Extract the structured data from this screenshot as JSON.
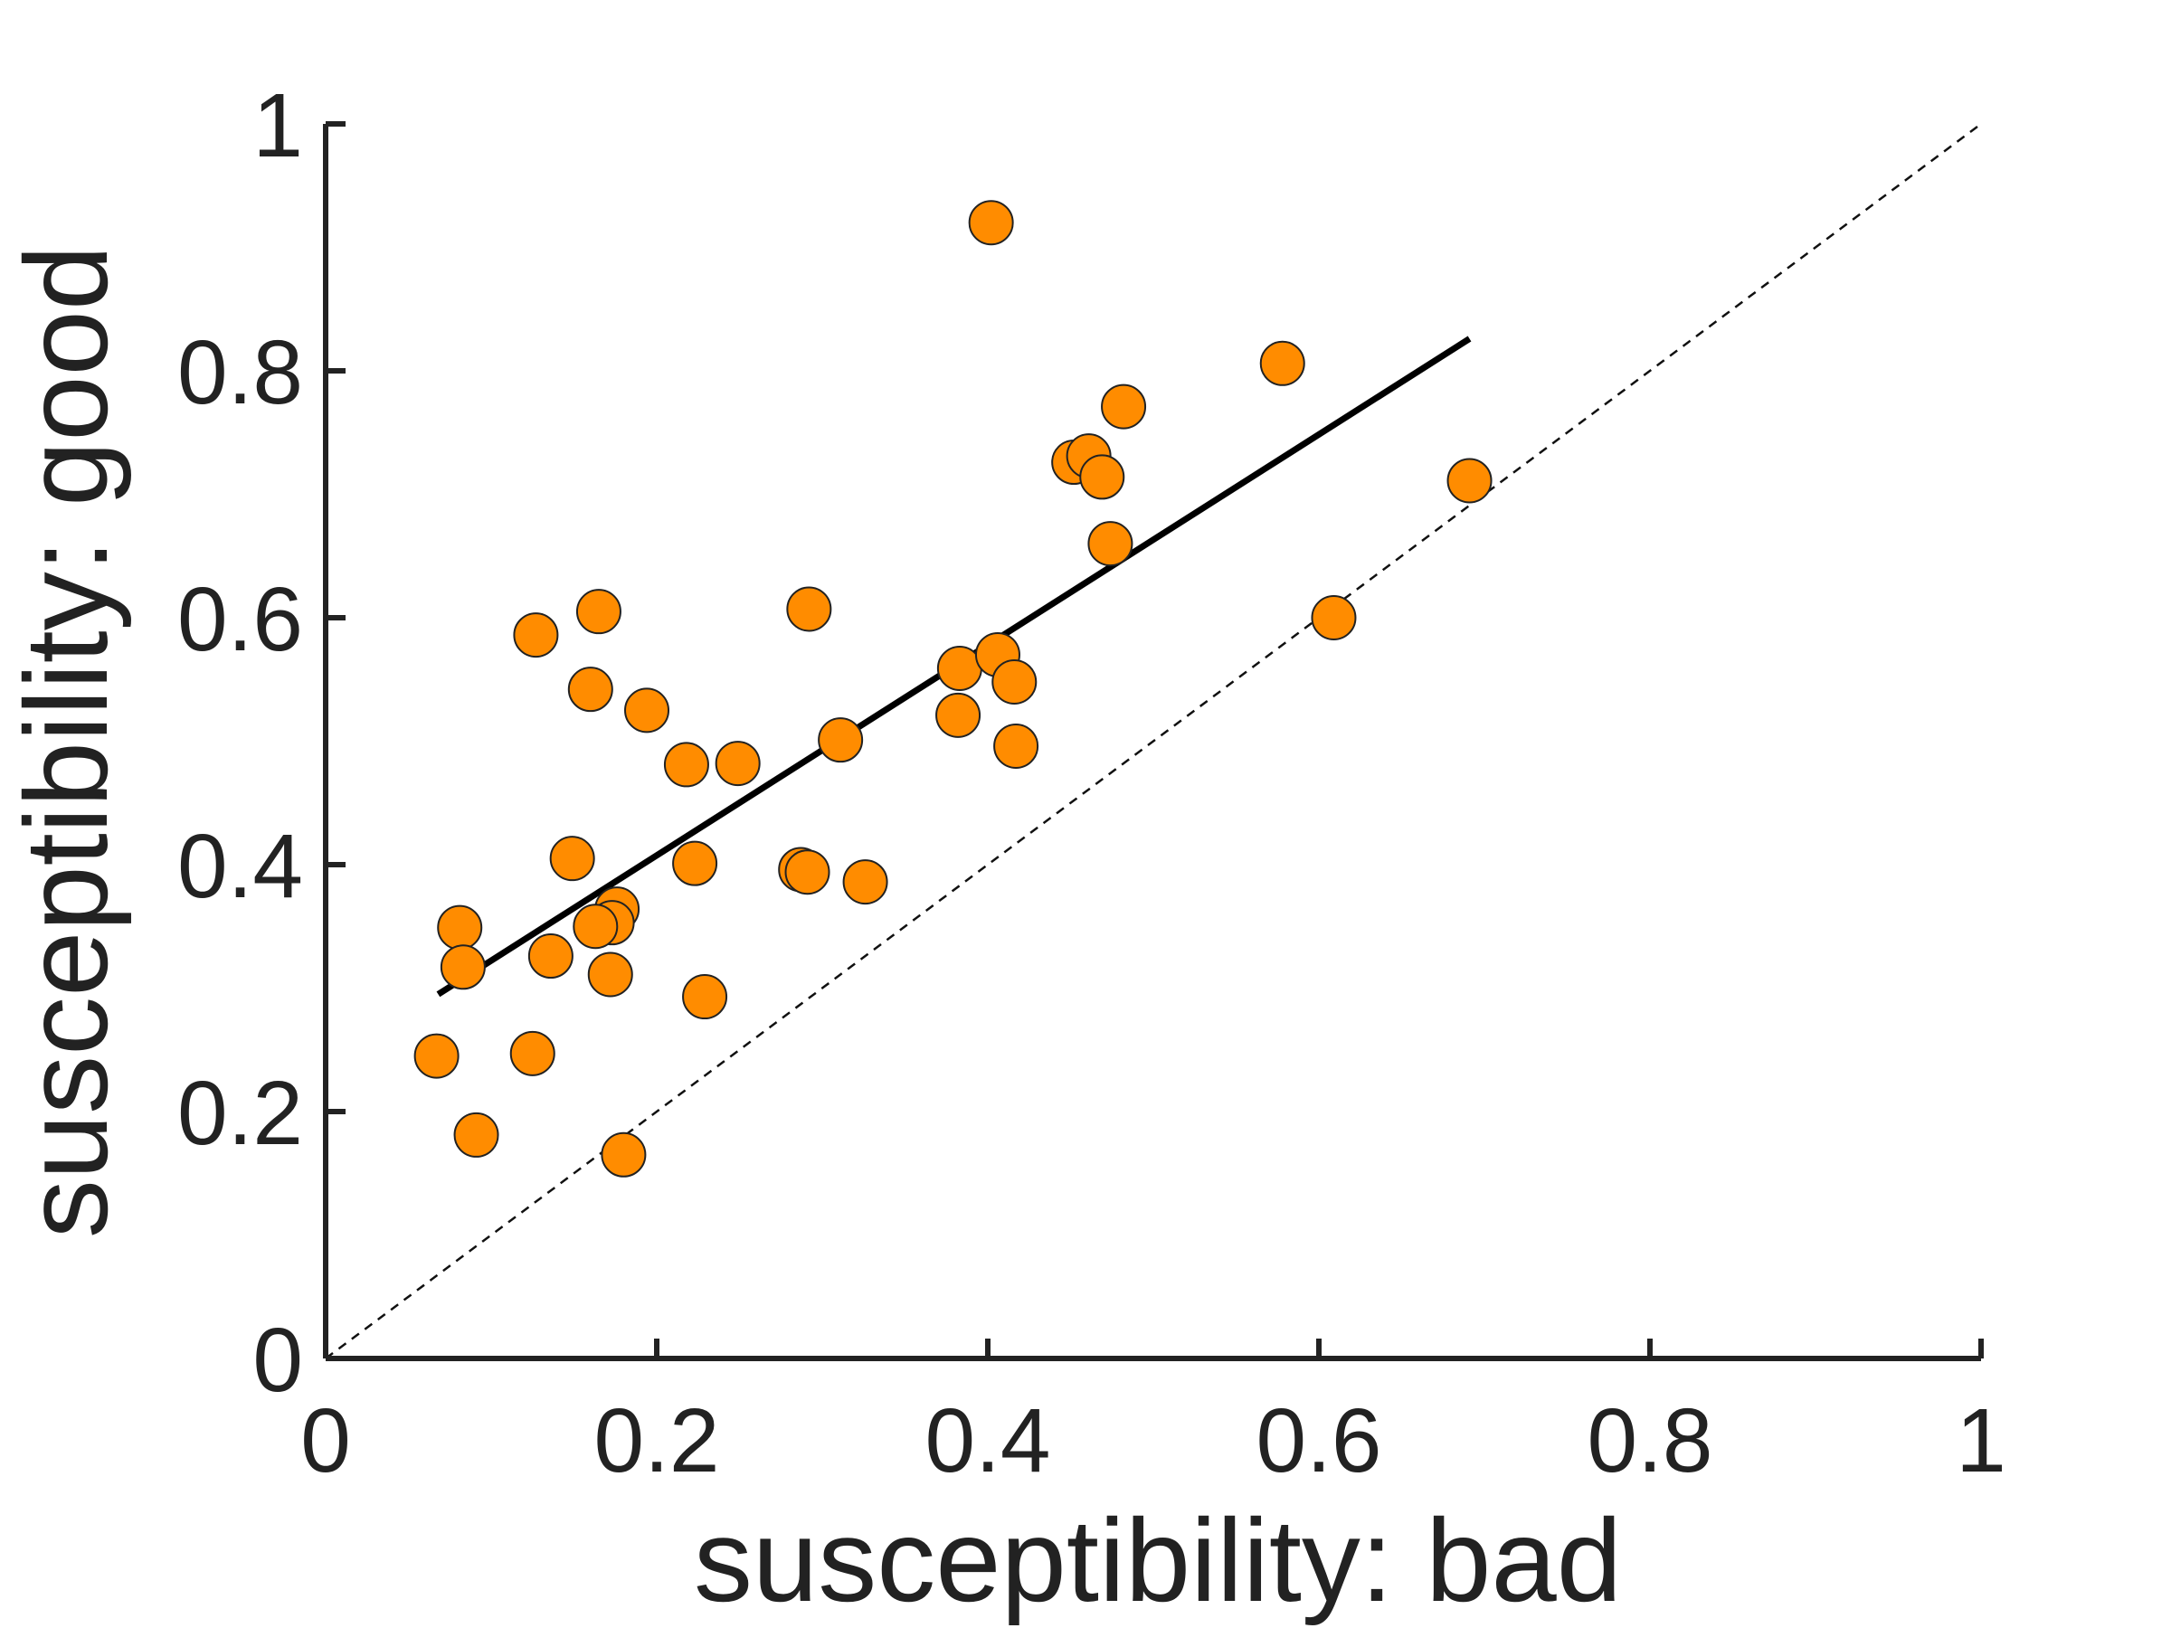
{
  "chart_data": {
    "type": "scatter",
    "xlabel": "susceptibility: bad",
    "ylabel": "susceptibility: good",
    "xlim": [
      0,
      1
    ],
    "ylim": [
      0,
      1
    ],
    "x_ticks": [
      "0",
      "0.2",
      "0.4",
      "0.6",
      "0.8",
      "1"
    ],
    "y_ticks": [
      "0",
      "0.2",
      "0.4",
      "0.6",
      "0.8",
      "1"
    ],
    "grid": false,
    "marker_color": "#ff8c00",
    "marker_edge_color": "#222222",
    "reference_line": {
      "style": "dashed",
      "x": [
        0,
        1
      ],
      "y": [
        0,
        1
      ]
    },
    "fit_line": {
      "x": [
        0.068,
        0.691
      ],
      "y": [
        0.295,
        0.826
      ]
    },
    "points": [
      {
        "x": 0.402,
        "y": 0.92
      },
      {
        "x": 0.578,
        "y": 0.806
      },
      {
        "x": 0.482,
        "y": 0.771
      },
      {
        "x": 0.452,
        "y": 0.726
      },
      {
        "x": 0.461,
        "y": 0.731
      },
      {
        "x": 0.469,
        "y": 0.714
      },
      {
        "x": 0.691,
        "y": 0.711
      },
      {
        "x": 0.474,
        "y": 0.66
      },
      {
        "x": 0.609,
        "y": 0.6
      },
      {
        "x": 0.165,
        "y": 0.605
      },
      {
        "x": 0.292,
        "y": 0.607
      },
      {
        "x": 0.127,
        "y": 0.586
      },
      {
        "x": 0.383,
        "y": 0.559
      },
      {
        "x": 0.406,
        "y": 0.57
      },
      {
        "x": 0.416,
        "y": 0.548
      },
      {
        "x": 0.16,
        "y": 0.542
      },
      {
        "x": 0.194,
        "y": 0.525
      },
      {
        "x": 0.382,
        "y": 0.521
      },
      {
        "x": 0.311,
        "y": 0.501
      },
      {
        "x": 0.417,
        "y": 0.496
      },
      {
        "x": 0.218,
        "y": 0.481
      },
      {
        "x": 0.249,
        "y": 0.482
      },
      {
        "x": 0.149,
        "y": 0.405
      },
      {
        "x": 0.223,
        "y": 0.401
      },
      {
        "x": 0.287,
        "y": 0.396
      },
      {
        "x": 0.291,
        "y": 0.394
      },
      {
        "x": 0.326,
        "y": 0.386
      },
      {
        "x": 0.176,
        "y": 0.364
      },
      {
        "x": 0.173,
        "y": 0.353
      },
      {
        "x": 0.163,
        "y": 0.35
      },
      {
        "x": 0.081,
        "y": 0.349
      },
      {
        "x": 0.136,
        "y": 0.326
      },
      {
        "x": 0.083,
        "y": 0.317
      },
      {
        "x": 0.172,
        "y": 0.311
      },
      {
        "x": 0.229,
        "y": 0.293
      },
      {
        "x": 0.067,
        "y": 0.245
      },
      {
        "x": 0.125,
        "y": 0.247
      },
      {
        "x": 0.091,
        "y": 0.181
      },
      {
        "x": 0.18,
        "y": 0.165
      }
    ]
  }
}
